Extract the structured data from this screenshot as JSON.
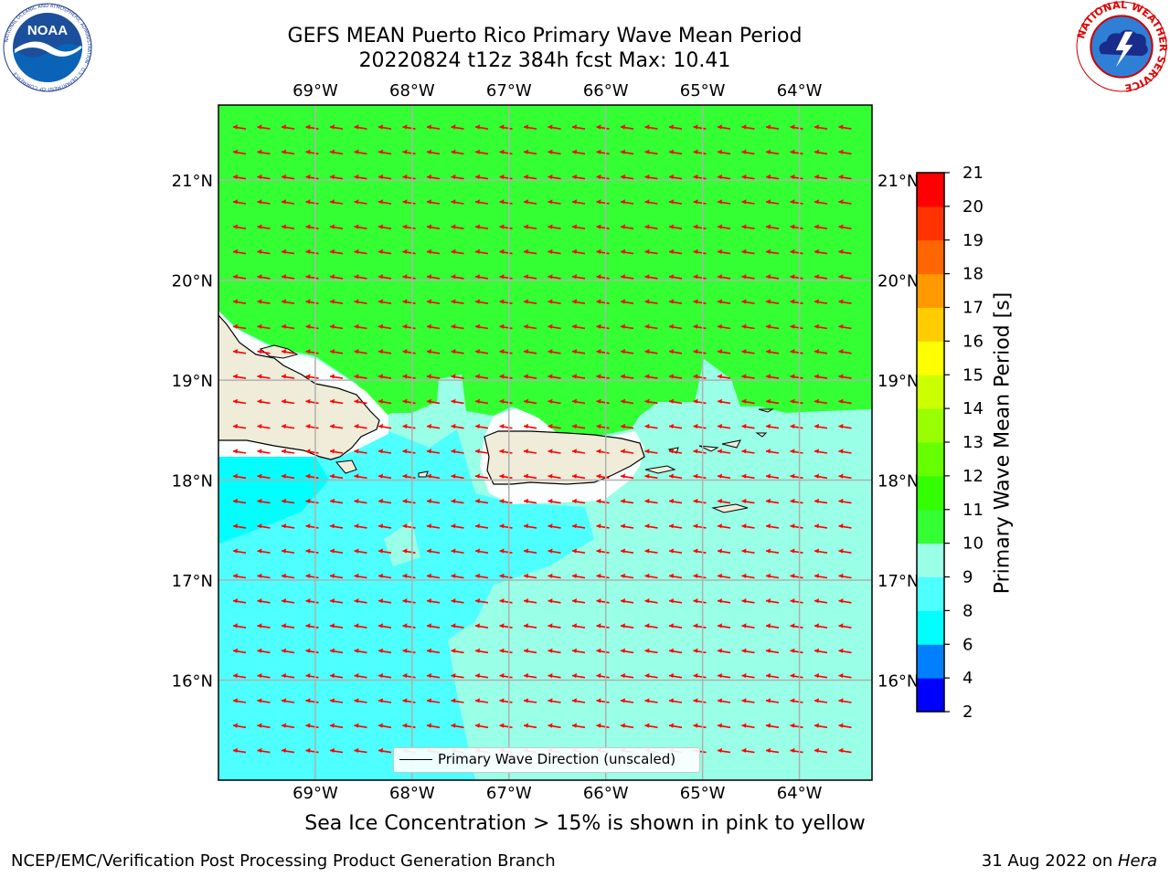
{
  "title": {
    "line1": "GEFS MEAN Puerto Rico Primary Wave Mean Period",
    "line2": "20220824 t12z 384h fcst   Max: 10.41"
  },
  "logos": {
    "left": {
      "icon": "noaa-logo",
      "text": "NOAA",
      "ring_text": "NATIONAL OCEANIC AND ATMOSPHERIC ADMINISTRATION · U.S. DEPARTMENT OF COMMERCE"
    },
    "right": {
      "icon": "national-weather-service-logo",
      "ring_text": "NATIONAL WEATHER SERVICE"
    }
  },
  "map": {
    "lon_labels": [
      "69°W",
      "68°W",
      "67°W",
      "66°W",
      "65°W",
      "64°W"
    ],
    "lat_labels": [
      "21°N",
      "20°N",
      "19°N",
      "18°N",
      "17°N",
      "16°N"
    ],
    "lon_values": [
      -69,
      -68,
      -67,
      -66,
      -65,
      -64
    ],
    "lat_values": [
      21,
      20,
      19,
      18,
      17,
      16
    ],
    "extent": {
      "lon_min": -70.0,
      "lon_max": -63.25,
      "lat_min": 15.0,
      "lat_max": 21.75
    },
    "arrow_direction": "westward (toward W, slight south component)",
    "arrow_color": "#ff0000",
    "land_color": "#efedd9",
    "legend": {
      "label": "Primary Wave Direction (unscaled)"
    }
  },
  "colorbar": {
    "label": "Primary Wave Mean Period [s]",
    "ticks": [
      "2",
      "4",
      "6",
      "8",
      "9",
      "10",
      "11",
      "12",
      "13",
      "14",
      "15",
      "16",
      "17",
      "18",
      "19",
      "20",
      "21"
    ],
    "colors": [
      "#0000ff",
      "#0080ff",
      "#00ffff",
      "#4dffff",
      "#99ffe6",
      "#33ff33",
      "#33ff00",
      "#66ff00",
      "#99ff00",
      "#ccff00",
      "#ffff00",
      "#ffcc00",
      "#ff9900",
      "#ff6600",
      "#ff3300",
      "#ff0000"
    ]
  },
  "caption": "Sea Ice Concentration > 15% is shown in pink to yellow",
  "footer": {
    "left": "NCEP/EMC/Verification Post Processing Product Generation Branch",
    "right_date": "31 Aug 2022 on ",
    "right_host": "Hera"
  }
}
